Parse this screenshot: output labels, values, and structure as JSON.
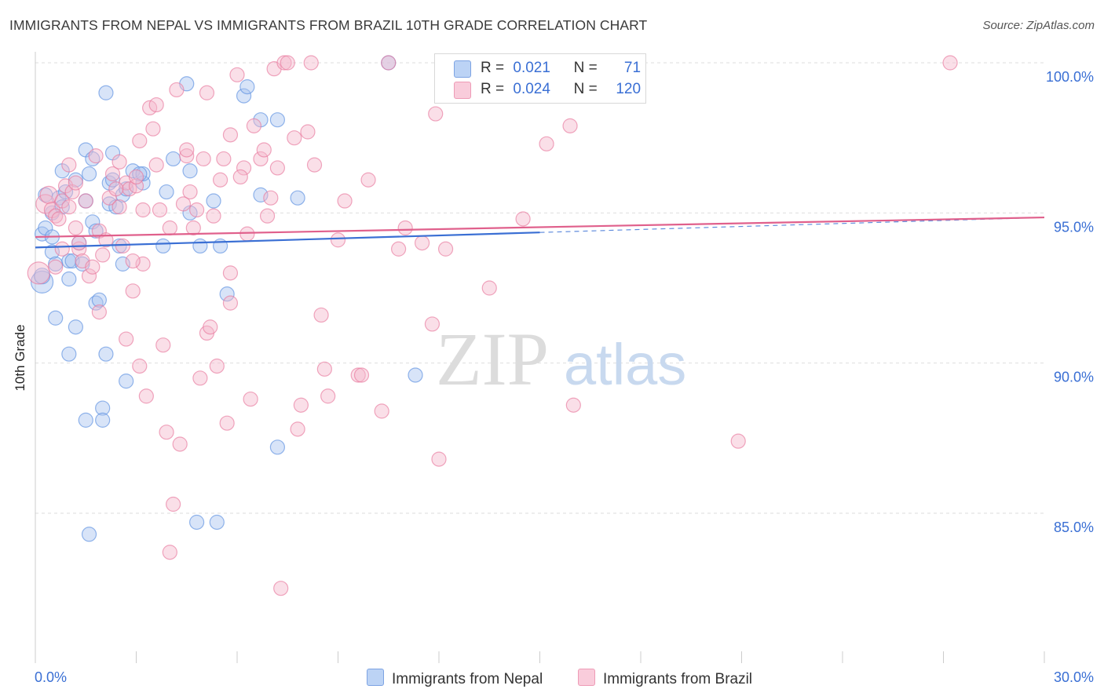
{
  "title": "IMMIGRANTS FROM NEPAL VS IMMIGRANTS FROM BRAZIL 10TH GRADE CORRELATION CHART",
  "source": "Source: ZipAtlas.com",
  "watermark": {
    "zip": "ZIP",
    "atlas": "atlas"
  },
  "legend": {
    "nepal": {
      "r_label": "R =",
      "r_value": "0.021",
      "n_label": "N =",
      "n_value": "71",
      "color": "#a8c4f0"
    },
    "brazil": {
      "r_label": "R =",
      "r_value": "0.024",
      "n_label": "N =",
      "n_value": "120",
      "color": "#f5b8cc"
    }
  },
  "bottom_legend": {
    "nepal": "Immigrants from Nepal",
    "brazil": "Immigrants from Brazil"
  },
  "chart_data": {
    "type": "scatter",
    "title": "IMMIGRANTS FROM NEPAL VS IMMIGRANTS FROM BRAZIL 10TH GRADE CORRELATION CHART",
    "xlabel": "",
    "ylabel": "10th Grade",
    "xlim": [
      0,
      30
    ],
    "ylim": [
      80.5,
      101.2
    ],
    "x_tick_labels": [
      "0.0%",
      "30.0%"
    ],
    "y_ticks": [
      85,
      90,
      95,
      100
    ],
    "y_tick_labels": [
      "85.0%",
      "90.0%",
      "95.0%",
      "100.0%"
    ],
    "series": [
      {
        "name": "Immigrants from Nepal",
        "color": "#5b8fe0",
        "fill": "#a8c4f0",
        "trend": {
          "x0": 0,
          "y0": 93.85,
          "x1": 15.0,
          "y1": 94.35,
          "dash_to_x": 30,
          "dash_to_y": 94.85
        },
        "points": [
          [
            0.2,
            92.7,
            14
          ],
          [
            0.2,
            92.9,
            10
          ],
          [
            0.2,
            94.3,
            9
          ],
          [
            0.3,
            94.5,
            9
          ],
          [
            0.3,
            95.6,
            9
          ],
          [
            0.5,
            94.2,
            9
          ],
          [
            0.5,
            93.7,
            9
          ],
          [
            0.5,
            95.0,
            9
          ],
          [
            0.6,
            93.3,
            9
          ],
          [
            0.6,
            91.5,
            9
          ],
          [
            0.7,
            95.5,
            9
          ],
          [
            0.8,
            95.2,
            9
          ],
          [
            0.8,
            96.4,
            9
          ],
          [
            0.9,
            95.7,
            9
          ],
          [
            1.0,
            93.4,
            9
          ],
          [
            1.0,
            92.8,
            9
          ],
          [
            1.0,
            90.3,
            9
          ],
          [
            1.1,
            93.4,
            9
          ],
          [
            1.2,
            96.1,
            9
          ],
          [
            1.2,
            91.2,
            9
          ],
          [
            1.4,
            93.3,
            9
          ],
          [
            1.5,
            95.4,
            9
          ],
          [
            1.5,
            88.1,
            9
          ],
          [
            1.5,
            97.1,
            9
          ],
          [
            1.6,
            96.3,
            9
          ],
          [
            1.6,
            84.3,
            9
          ],
          [
            1.7,
            94.7,
            9
          ],
          [
            1.7,
            96.8,
            9
          ],
          [
            1.8,
            92.0,
            9
          ],
          [
            1.8,
            94.4,
            9
          ],
          [
            1.9,
            92.1,
            9
          ],
          [
            2.0,
            88.5,
            9
          ],
          [
            2.0,
            88.1,
            9
          ],
          [
            2.1,
            99.0,
            9
          ],
          [
            2.1,
            90.3,
            9
          ],
          [
            2.2,
            96.0,
            9
          ],
          [
            2.2,
            95.3,
            9
          ],
          [
            2.3,
            97.0,
            9
          ],
          [
            2.3,
            96.1,
            9
          ],
          [
            2.4,
            95.2,
            9
          ],
          [
            2.5,
            93.9,
            9
          ],
          [
            2.6,
            95.6,
            9
          ],
          [
            2.6,
            93.3,
            9
          ],
          [
            2.7,
            95.8,
            9
          ],
          [
            2.7,
            89.4,
            9
          ],
          [
            2.9,
            96.4,
            9
          ],
          [
            3.2,
            96.0,
            9
          ],
          [
            3.2,
            96.3,
            9
          ],
          [
            3.8,
            93.9,
            9
          ],
          [
            3.9,
            95.7,
            9
          ],
          [
            4.1,
            96.8,
            9
          ],
          [
            4.5,
            99.3,
            9
          ],
          [
            4.6,
            96.4,
            9
          ],
          [
            4.6,
            95.0,
            9
          ],
          [
            4.8,
            84.7,
            9
          ],
          [
            4.9,
            93.9,
            9
          ],
          [
            5.3,
            95.4,
            9
          ],
          [
            5.4,
            84.7,
            9
          ],
          [
            5.5,
            93.9,
            9
          ],
          [
            5.7,
            92.3,
            9
          ],
          [
            6.2,
            98.9,
            9
          ],
          [
            6.3,
            99.2,
            9
          ],
          [
            6.7,
            98.1,
            9
          ],
          [
            6.7,
            95.6,
            9
          ],
          [
            7.2,
            98.1,
            9
          ],
          [
            7.2,
            87.2,
            9
          ],
          [
            7.8,
            95.5,
            9
          ],
          [
            11.3,
            89.6,
            9
          ],
          [
            10.5,
            100.0,
            9
          ],
          [
            3.1,
            96.3,
            9
          ],
          [
            1.3,
            94.0,
            9
          ]
        ]
      },
      {
        "name": "Immigrants from Brazil",
        "color": "#e8789c",
        "fill": "#f5b8cc",
        "trend": {
          "x0": 0,
          "y0": 94.2,
          "x1": 30,
          "y1": 94.85
        },
        "points": [
          [
            0.1,
            93.0,
            14
          ],
          [
            0.3,
            95.3,
            12
          ],
          [
            0.4,
            95.6,
            11
          ],
          [
            0.5,
            95.1,
            10
          ],
          [
            0.6,
            94.9,
            9
          ],
          [
            0.8,
            95.4,
            9
          ],
          [
            0.8,
            93.8,
            9
          ],
          [
            0.9,
            95.9,
            9
          ],
          [
            1.0,
            95.2,
            9
          ],
          [
            1.0,
            96.6,
            9
          ],
          [
            1.1,
            95.7,
            9
          ],
          [
            1.2,
            94.5,
            9
          ],
          [
            1.3,
            93.8,
            9
          ],
          [
            1.3,
            94.0,
            9
          ],
          [
            1.4,
            93.4,
            9
          ],
          [
            1.5,
            95.4,
            9
          ],
          [
            1.6,
            92.9,
            9
          ],
          [
            1.8,
            96.9,
            9
          ],
          [
            1.9,
            91.7,
            9
          ],
          [
            1.9,
            94.4,
            9
          ],
          [
            2.0,
            93.6,
            9
          ],
          [
            2.1,
            94.1,
            9
          ],
          [
            2.2,
            95.5,
            9
          ],
          [
            2.3,
            96.3,
            9
          ],
          [
            2.5,
            96.7,
            9
          ],
          [
            2.5,
            95.2,
            9
          ],
          [
            2.6,
            93.9,
            9
          ],
          [
            2.7,
            90.8,
            9
          ],
          [
            2.7,
            96.0,
            9
          ],
          [
            2.8,
            95.8,
            9
          ],
          [
            2.9,
            92.4,
            9
          ],
          [
            3.0,
            95.9,
            9
          ],
          [
            3.1,
            89.9,
            9
          ],
          [
            3.1,
            97.4,
            9
          ],
          [
            3.2,
            93.3,
            9
          ],
          [
            3.2,
            95.1,
            9
          ],
          [
            3.3,
            88.9,
            9
          ],
          [
            3.4,
            98.5,
            9
          ],
          [
            3.5,
            97.8,
            9
          ],
          [
            3.6,
            96.6,
            9
          ],
          [
            3.6,
            98.6,
            9
          ],
          [
            3.7,
            95.1,
            9
          ],
          [
            3.8,
            90.6,
            9
          ],
          [
            3.9,
            87.7,
            9
          ],
          [
            4.0,
            83.7,
            9
          ],
          [
            4.0,
            94.5,
            9
          ],
          [
            4.1,
            85.3,
            9
          ],
          [
            4.2,
            99.1,
            9
          ],
          [
            4.3,
            87.3,
            9
          ],
          [
            4.5,
            96.9,
            9
          ],
          [
            4.5,
            97.1,
            9
          ],
          [
            4.6,
            95.7,
            9
          ],
          [
            4.7,
            94.5,
            9
          ],
          [
            4.8,
            95.1,
            9
          ],
          [
            4.9,
            89.5,
            9
          ],
          [
            5.0,
            96.8,
            9
          ],
          [
            5.1,
            91.0,
            9
          ],
          [
            5.1,
            99.0,
            9
          ],
          [
            5.2,
            91.2,
            9
          ],
          [
            5.4,
            89.9,
            9
          ],
          [
            5.5,
            96.1,
            9
          ],
          [
            5.6,
            96.8,
            9
          ],
          [
            5.7,
            88.0,
            9
          ],
          [
            5.8,
            97.6,
            9
          ],
          [
            5.8,
            93.0,
            9
          ],
          [
            5.8,
            92.0,
            9
          ],
          [
            6.0,
            99.6,
            9
          ],
          [
            6.2,
            96.5,
            9
          ],
          [
            6.3,
            94.3,
            9
          ],
          [
            6.4,
            88.8,
            9
          ],
          [
            6.5,
            97.9,
            9
          ],
          [
            6.7,
            96.8,
            9
          ],
          [
            6.8,
            97.1,
            9
          ],
          [
            6.9,
            94.9,
            9
          ],
          [
            7.0,
            95.5,
            9
          ],
          [
            7.1,
            99.8,
            9
          ],
          [
            7.2,
            96.5,
            9
          ],
          [
            7.3,
            82.5,
            9
          ],
          [
            7.4,
            100.0,
            9
          ],
          [
            7.5,
            100.0,
            9
          ],
          [
            7.8,
            87.8,
            9
          ],
          [
            7.9,
            88.6,
            9
          ],
          [
            7.7,
            97.5,
            9
          ],
          [
            8.1,
            97.7,
            9
          ],
          [
            8.2,
            100.0,
            9
          ],
          [
            8.3,
            96.6,
            9
          ],
          [
            8.5,
            91.6,
            9
          ],
          [
            8.6,
            89.8,
            9
          ],
          [
            8.7,
            88.9,
            9
          ],
          [
            9.0,
            94.1,
            9
          ],
          [
            9.6,
            89.6,
            9
          ],
          [
            9.7,
            89.6,
            9
          ],
          [
            9.9,
            96.1,
            9
          ],
          [
            10.3,
            88.4,
            9
          ],
          [
            10.5,
            100.0,
            9
          ],
          [
            10.8,
            93.8,
            9
          ],
          [
            11.0,
            94.5,
            9
          ],
          [
            11.5,
            94.0,
            9
          ],
          [
            11.8,
            91.3,
            9
          ],
          [
            11.9,
            98.3,
            9
          ],
          [
            12.0,
            86.8,
            9
          ],
          [
            12.2,
            93.8,
            9
          ],
          [
            13.5,
            92.5,
            9
          ],
          [
            14.5,
            94.8,
            9
          ],
          [
            15.2,
            97.3,
            9
          ],
          [
            15.9,
            97.9,
            9
          ],
          [
            16.0,
            88.6,
            9
          ],
          [
            20.9,
            87.4,
            9
          ],
          [
            27.2,
            100.0,
            9
          ],
          [
            2.9,
            93.4,
            9
          ],
          [
            0.7,
            94.8,
            9
          ],
          [
            1.2,
            96.0,
            9
          ],
          [
            2.4,
            95.8,
            9
          ],
          [
            3.0,
            96.2,
            9
          ],
          [
            4.4,
            95.3,
            9
          ],
          [
            6.1,
            96.2,
            9
          ],
          [
            0.6,
            93.2,
            9
          ],
          [
            1.7,
            93.2,
            9
          ],
          [
            5.3,
            94.9,
            9
          ],
          [
            9.2,
            95.4,
            9
          ]
        ]
      }
    ]
  }
}
